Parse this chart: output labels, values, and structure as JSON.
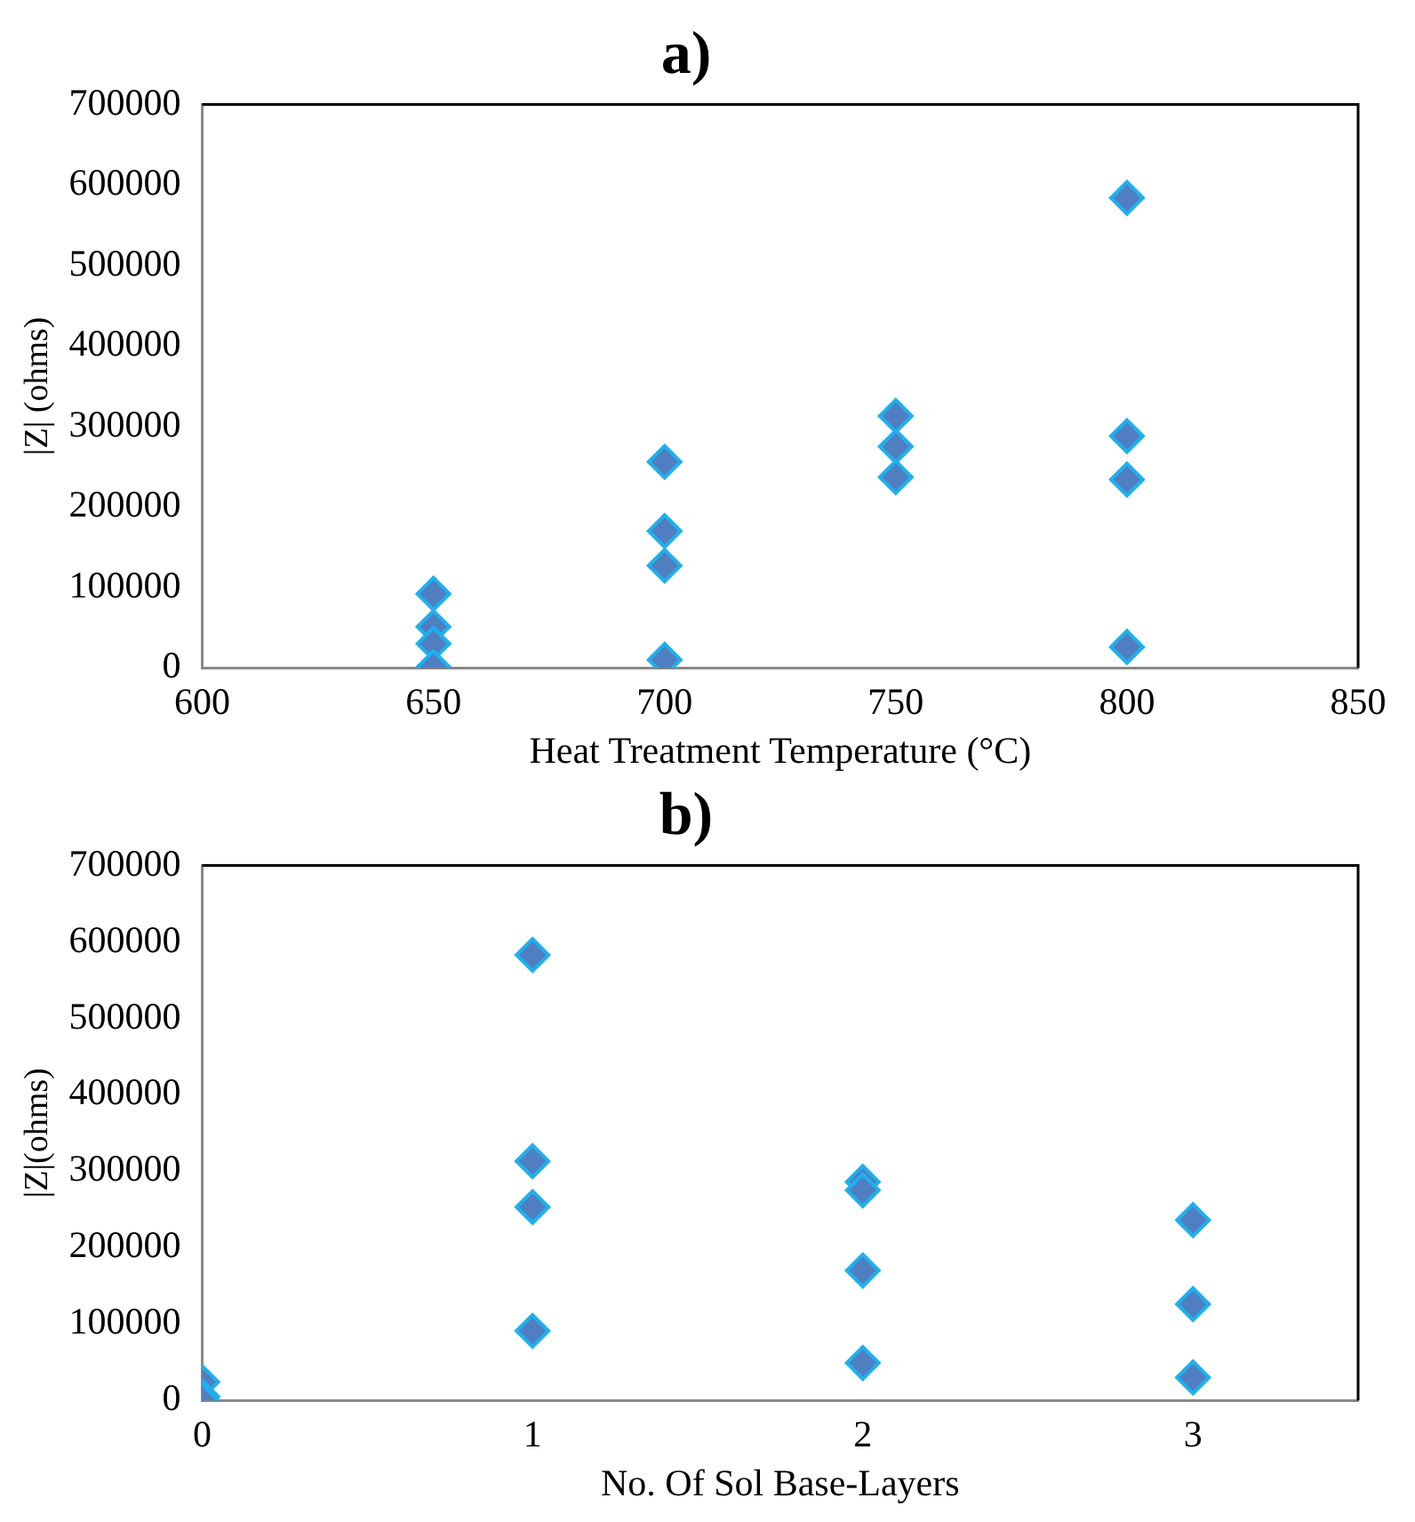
{
  "chart_data": [
    {
      "type": "scatter",
      "title": "a)",
      "xlabel": "Heat Treatment Temperature (°C)",
      "ylabel": "|Z| (ohms)",
      "marker": "diamond",
      "series": [
        {
          "color": "#4f7fc0",
          "x": [
            650,
            650,
            650,
            650,
            700,
            700,
            700,
            700,
            750,
            750,
            750,
            800,
            800,
            800,
            800
          ],
          "values": [
            92000,
            51000,
            30000,
            1000,
            256000,
            170000,
            127000,
            10000,
            313000,
            275000,
            237000,
            584000,
            288000,
            234000,
            26000
          ]
        }
      ],
      "xlim": [
        600,
        850
      ],
      "xticks": [
        600,
        650,
        700,
        750,
        800,
        850
      ],
      "ylim": [
        0,
        700000
      ],
      "yticks": [
        0,
        100000,
        200000,
        300000,
        400000,
        500000,
        600000,
        700000
      ]
    },
    {
      "type": "scatter",
      "title": "b)",
      "xlabel": "No. Of Sol Base-Layers",
      "ylabel": "|Z|(ohms)",
      "marker": "diamond",
      "series": [
        {
          "color": "#4f7fc0",
          "x": [
            0,
            0,
            0,
            1,
            1,
            1,
            1,
            2,
            2,
            2,
            2,
            3,
            3,
            3
          ],
          "values": [
            24000,
            5000,
            0,
            583000,
            313000,
            253000,
            91000,
            286000,
            275000,
            170000,
            49000,
            236000,
            126000,
            30000
          ]
        }
      ],
      "xlim": [
        0,
        3.5
      ],
      "xticks": [
        0,
        1,
        2,
        3
      ],
      "ylim": [
        0,
        700000
      ],
      "yticks": [
        0,
        100000,
        200000,
        300000,
        400000,
        500000,
        600000,
        700000
      ]
    }
  ]
}
